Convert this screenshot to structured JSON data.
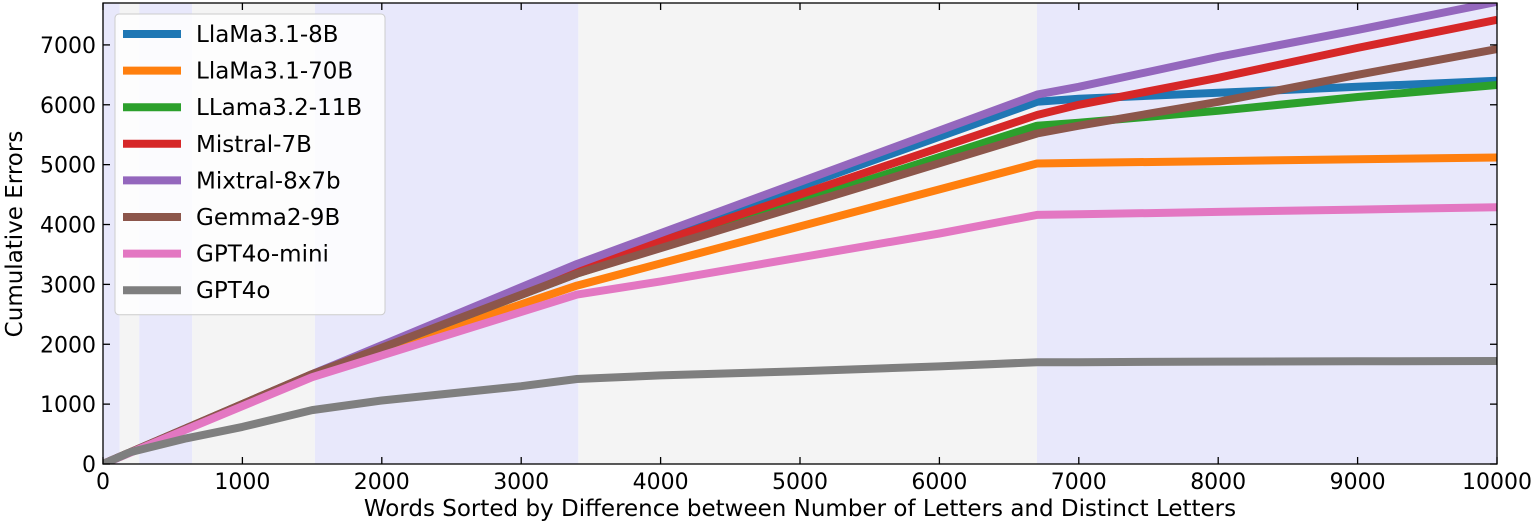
{
  "chart_data": {
    "type": "line",
    "xlabel": "Words Sorted by Difference between Number of Letters and Distinct Letters",
    "ylabel": "Cumulative Errors",
    "xlim": [
      0,
      10000
    ],
    "ylim": [
      0,
      7700
    ],
    "xticks": [
      0,
      1000,
      2000,
      3000,
      4000,
      5000,
      6000,
      7000,
      8000,
      9000,
      10000
    ],
    "yticks": [
      0,
      1000,
      2000,
      3000,
      4000,
      5000,
      6000,
      7000
    ],
    "legend_position": "top-left",
    "grid": false,
    "background_bands": [
      {
        "x0": 0,
        "x1": 120,
        "color": "#e8e8fb"
      },
      {
        "x0": 120,
        "x1": 260,
        "color": "#f4f4f4"
      },
      {
        "x0": 260,
        "x1": 640,
        "color": "#e8e8fb"
      },
      {
        "x0": 640,
        "x1": 1520,
        "color": "#f4f4f4"
      },
      {
        "x0": 1520,
        "x1": 3410,
        "color": "#e8e8fb"
      },
      {
        "x0": 3410,
        "x1": 6700,
        "color": "#f4f4f4"
      },
      {
        "x0": 6700,
        "x1": 10000,
        "color": "#e8e8fb"
      }
    ],
    "series": [
      {
        "name": "LlaMa3.1-8B",
        "color": "#1f77b4",
        "x": [
          0,
          1500,
          3400,
          6700,
          7000,
          8000,
          9000,
          10000
        ],
        "y": [
          0,
          1500,
          3300,
          6050,
          6100,
          6200,
          6300,
          6400
        ]
      },
      {
        "name": "LlaMa3.1-70B",
        "color": "#ff7f0e",
        "x": [
          0,
          1500,
          3400,
          6700,
          7000,
          8000,
          9000,
          10000
        ],
        "y": [
          0,
          1500,
          2980,
          5020,
          5030,
          5060,
          5090,
          5120
        ]
      },
      {
        "name": "LLama3.2-11B",
        "color": "#2ca02c",
        "x": [
          0,
          1500,
          3400,
          6700,
          7000,
          8000,
          9000,
          10000
        ],
        "y": [
          0,
          1500,
          3180,
          5650,
          5700,
          5900,
          6130,
          6330
        ]
      },
      {
        "name": "Mistral-7B",
        "color": "#d62728",
        "x": [
          0,
          1500,
          3400,
          6700,
          7000,
          8000,
          9000,
          10000
        ],
        "y": [
          0,
          1500,
          3250,
          5830,
          6000,
          6450,
          6950,
          7420
        ]
      },
      {
        "name": "Mixtral-8x7b",
        "color": "#9467bd",
        "x": [
          0,
          1500,
          3400,
          6700,
          7000,
          8000,
          9000,
          10000
        ],
        "y": [
          0,
          1500,
          3340,
          6170,
          6300,
          6800,
          7250,
          7720
        ]
      },
      {
        "name": "Gemma2-9B",
        "color": "#8c564b",
        "x": [
          0,
          1500,
          3400,
          6700,
          7000,
          8000,
          9000,
          10000
        ],
        "y": [
          0,
          1500,
          3180,
          5520,
          5650,
          6050,
          6500,
          6930
        ]
      },
      {
        "name": "GPT4o-mini",
        "color": "#e377c2",
        "x": [
          0,
          1500,
          3400,
          4000,
          5000,
          6000,
          6700,
          7000,
          8000,
          9000,
          10000
        ],
        "y": [
          0,
          1450,
          2830,
          3050,
          3450,
          3850,
          4160,
          4170,
          4210,
          4250,
          4290
        ]
      },
      {
        "name": "GPT4o",
        "color": "#7f7f7f",
        "x": [
          0,
          200,
          600,
          1000,
          1500,
          2000,
          3000,
          3400,
          4000,
          5000,
          6000,
          6700,
          7000,
          8000,
          9000,
          10000
        ],
        "y": [
          0,
          200,
          430,
          620,
          900,
          1060,
          1300,
          1420,
          1480,
          1550,
          1630,
          1700,
          1700,
          1710,
          1715,
          1720
        ]
      }
    ]
  }
}
